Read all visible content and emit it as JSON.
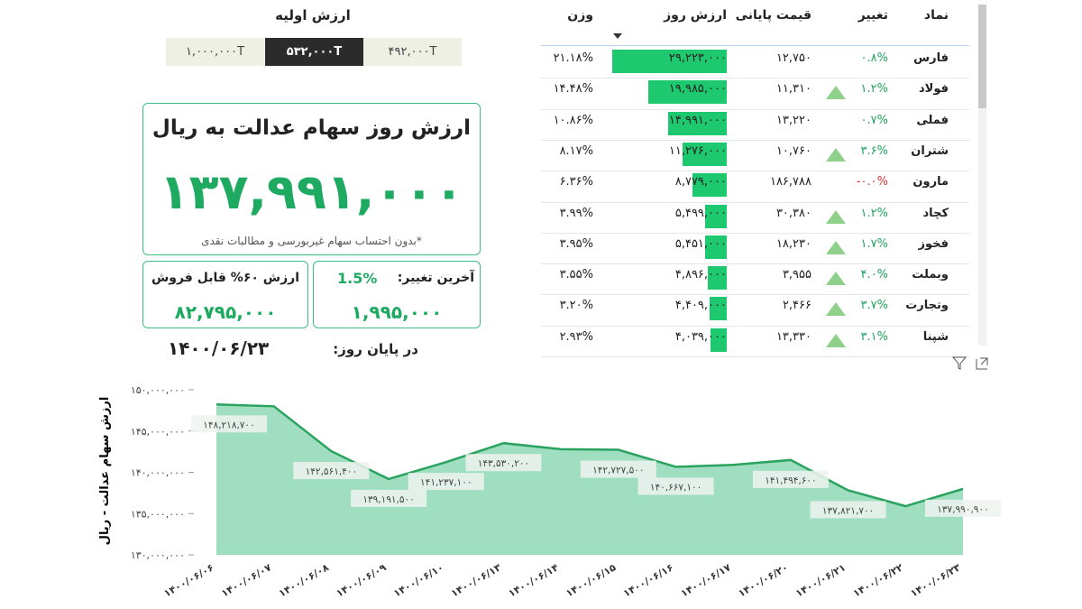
{
  "initial_value": {
    "title": "ارزش اولیه",
    "options": [
      "۱,۰۰۰,۰۰۰T",
      "۵۳۲,۰۰۰T",
      "۴۹۲,۰۰۰T"
    ]
  },
  "summary": {
    "title": "ارزش روز سهام عدالت به ریال",
    "value": "۱۳۷,۹۹۱,۰۰۰",
    "note": "*بدون احتساب سهام غیربورسی و مطالبات نقدی"
  },
  "sellable": {
    "title": "ارزش ۶۰% قابل فروش",
    "value": "۸۲,۷۹۵,۰۰۰"
  },
  "last_change": {
    "title": "آخرین تغییر:",
    "percent": "1.5%",
    "value": "۱,۹۹۵,۰۰۰"
  },
  "end_of_day": {
    "label": "در پایان روز:",
    "date": "۱۴۰۰/۰۶/۲۳"
  },
  "table": {
    "columns": [
      "نماد",
      "تغییر",
      "قیمت پایانی",
      "ارزش روز",
      "وزن"
    ],
    "rows": [
      [
        "فارس",
        "۰.۸%",
        "۱۲,۷۵۰",
        {
          "value": 29223000,
          "label": "۲۹,۲۲۳,۰۰۰"
        },
        "۲۱.۱۸%"
      ],
      [
        "فولاد",
        "۱.۲%",
        "۱۱,۳۱۰",
        {
          "value": 19985000,
          "label": "۱۹,۹۸۵,۰۰۰"
        },
        "۱۴.۴۸%"
      ],
      [
        "فملی",
        "۰.۷%",
        "۱۳,۲۲۰",
        {
          "value": 14991000,
          "label": "۱۴,۹۹۱,۰۰۰"
        },
        "۱۰.۸۶%"
      ],
      [
        "شتران",
        "۳.۶%",
        "۱۰,۷۶۰",
        {
          "value": 11276000,
          "label": "۱۱,۲۷۶,۰۰۰"
        },
        "۸.۱۷%"
      ],
      [
        "مارون",
        "-۰.۰%",
        "۱۸۶,۷۸۸",
        {
          "value": 8779000,
          "label": "۸,۷۷۹,۰۰۰"
        },
        "۶.۳۶%"
      ],
      [
        "کچاد",
        "۱.۲%",
        "۳۰,۳۸۰",
        {
          "value": 5499000,
          "label": "۵,۴۹۹,۰۰۰"
        },
        "۳.۹۹%"
      ],
      [
        "فخوز",
        "۱.۷%",
        "۱۸,۲۳۰",
        {
          "value": 5451000,
          "label": "۵,۴۵۱,۰۰۰"
        },
        "۳.۹۵%"
      ],
      [
        "وبملت",
        "۴.۰%",
        "۳,۹۵۵",
        {
          "value": 4896000,
          "label": "۴,۸۹۶,۰۰۰"
        },
        "۳.۵۵%"
      ],
      [
        "وتجارت",
        "۳.۷%",
        "۲,۴۶۶",
        {
          "value": 4409000,
          "label": "۴,۴۰۹,۰۰۰"
        },
        "۳.۲۰%"
      ],
      [
        "شپنا",
        "۳.۱%",
        "۱۳,۳۳۰",
        {
          "value": 4039000,
          "label": "۴,۰۳۹,۰۰۰"
        },
        "۲.۹۳%"
      ]
    ]
  },
  "chart_data": {
    "type": "area",
    "categories": [
      "۱۴۰۰/۰۶/۰۶",
      "۱۴۰۰/۰۶/۰۷",
      "۱۴۰۰/۰۶/۰۸",
      "۱۴۰۰/۰۶/۰۹",
      "۱۴۰۰/۰۶/۱۰",
      "۱۴۰۰/۰۶/۱۳",
      "۱۴۰۰/۰۶/۱۴",
      "۱۴۰۰/۰۶/۱۵",
      "۱۴۰۰/۰۶/۱۶",
      "۱۴۰۰/۰۶/۱۷",
      "۱۴۰۰/۰۶/۲۰",
      "۱۴۰۰/۰۶/۲۱",
      "۱۴۰۰/۰۶/۲۲",
      "۱۴۰۰/۰۶/۲۳"
    ],
    "values": [
      148218700,
      148000000,
      142561400,
      139191500,
      141237100,
      143530200,
      142800000,
      142727500,
      140667100,
      140900000,
      141494600,
      137821700,
      135900000,
      137990900
    ],
    "value_labels": [
      "۱۴۸,۲۱۸,۷۰۰",
      null,
      "۱۴۲,۵۶۱,۴۰۰",
      "۱۳۹,۱۹۱,۵۰۰",
      "۱۴۱,۲۳۷,۱۰۰",
      "۱۴۳,۵۳۰,۲۰۰",
      null,
      "۱۴۲,۷۲۷,۵۰۰",
      "۱۴۰,۶۶۷,۱۰۰",
      null,
      "۱۴۱,۴۹۴,۶۰۰",
      "۱۳۷,۸۲۱,۷۰۰",
      null,
      "۱۳۷,۹۹۰,۹۰۰"
    ],
    "color": "#2aa35f",
    "fill": "#9fdec0",
    "y_label": "ارزش سهام عدالت - ریال",
    "ylim": [
      130000000,
      150000000
    ],
    "yticks": [
      {
        "value": 130000000,
        "label": "۱۳۰,۰۰۰,۰۰۰"
      },
      {
        "value": 135000000,
        "label": "۱۳۵,۰۰۰,۰۰۰"
      },
      {
        "value": 140000000,
        "label": "۱۴۰,۰۰۰,۰۰۰"
      },
      {
        "value": 145000000,
        "label": "۱۴۵,۰۰۰,۰۰۰"
      },
      {
        "value": 150000000,
        "label": "۱۵۰,۰۰۰,۰۰۰"
      }
    ]
  }
}
